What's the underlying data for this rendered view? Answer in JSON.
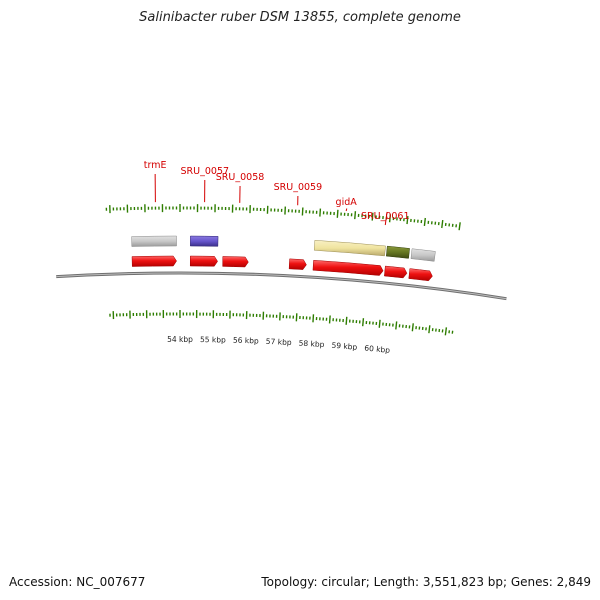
{
  "header": {
    "title": "Salinibacter ruber DSM 13855, complete genome"
  },
  "footer": {
    "accession": "Accession: NC_007677",
    "summary": "Topology: circular; Length: 3,551,823 bp; Genes: 2,849"
  },
  "colors": {
    "cds_red": "#ee1111",
    "rna_gray": "#c8c8c8",
    "purple": "#6655cc",
    "khaki": "#f0e4a0",
    "olive": "#667722",
    "label_red": "#d40000",
    "tick_green": "#2e7d00",
    "backbone": "#7a7a7a"
  },
  "genes": [
    {
      "name": "trmE",
      "kbp": 53.3
    },
    {
      "name": "SRU_0057",
      "kbp": 54.7
    },
    {
      "name": "SRU_0058",
      "kbp": 55.7
    },
    {
      "name": "SRU_0059",
      "kbp": 57.35
    },
    {
      "name": "gidA",
      "kbp": 58.75
    },
    {
      "name": "SRU_0061",
      "kbp": 59.9
    }
  ],
  "forward_features": [
    {
      "type": "rRNA-like",
      "start_kbp": 52.6,
      "end_kbp": 53.9,
      "color": "rna_gray"
    },
    {
      "type": "misc",
      "start_kbp": 54.3,
      "end_kbp": 55.1,
      "color": "purple"
    },
    {
      "type": "misc",
      "start_kbp": 57.9,
      "end_kbp": 59.95,
      "color": "khaki"
    },
    {
      "type": "misc",
      "start_kbp": 60.0,
      "end_kbp": 60.65,
      "color": "olive"
    },
    {
      "type": "rRNA-like",
      "start_kbp": 60.72,
      "end_kbp": 61.4,
      "color": "rna_gray"
    }
  ],
  "cds": [
    {
      "start_kbp": 52.6,
      "end_kbp": 53.9
    },
    {
      "start_kbp": 54.3,
      "end_kbp": 55.1
    },
    {
      "start_kbp": 55.25,
      "end_kbp": 56.0
    },
    {
      "start_kbp": 57.2,
      "end_kbp": 57.7
    },
    {
      "start_kbp": 57.9,
      "end_kbp": 59.95
    },
    {
      "start_kbp": 60.0,
      "end_kbp": 60.65
    },
    {
      "start_kbp": 60.72,
      "end_kbp": 61.4
    }
  ],
  "kbp_ticks": [
    {
      "kbp": 54,
      "label": "54 kbp"
    },
    {
      "kbp": 55,
      "label": "55 kbp"
    },
    {
      "kbp": 56,
      "label": "56 kbp"
    },
    {
      "kbp": 57,
      "label": "57 kbp"
    },
    {
      "kbp": 58,
      "label": "58 kbp"
    },
    {
      "kbp": 59,
      "label": "59 kbp"
    },
    {
      "kbp": 60,
      "label": "60 kbp"
    }
  ]
}
